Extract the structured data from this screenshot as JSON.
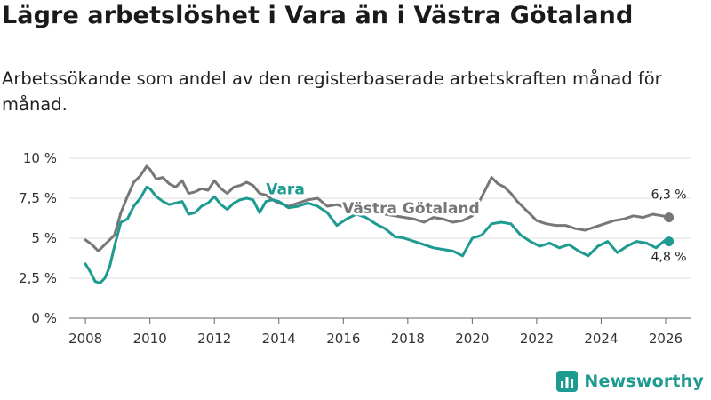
{
  "header": {
    "title": "Lägre arbetslöshet i Vara än i Västra Götaland",
    "subtitle": "Arbetssökande som andel av den registerbaserade arbetskraften månad för månad."
  },
  "brand": {
    "name": "Newsworthy",
    "color": "#1e9b90"
  },
  "chart_data": {
    "type": "line",
    "title": "Lägre arbetslöshet i Vara än i Västra Götaland",
    "subtitle": "Arbetssökande som andel av den registerbaserade arbetskraften månad för månad.",
    "xlabel": "",
    "ylabel": "",
    "xlim": [
      2007.5,
      2026.8
    ],
    "ylim": [
      0,
      10
    ],
    "x_ticks": [
      2008,
      2010,
      2012,
      2014,
      2016,
      2018,
      2020,
      2022,
      2024,
      2026
    ],
    "x_tick_labels": [
      "2008",
      "2010",
      "2012",
      "2014",
      "2016",
      "2018",
      "2020",
      "2022",
      "2024",
      "2026"
    ],
    "y_ticks": [
      0,
      2.5,
      5,
      7.5,
      10
    ],
    "y_tick_labels": [
      "0 %",
      "2,5 %",
      "5 %",
      "7,5 %",
      "10 %"
    ],
    "grid": true,
    "series": [
      {
        "name": "Västra Götaland",
        "color": "#777777",
        "x": [
          2008.0,
          2008.2,
          2008.4,
          2008.6,
          2008.9,
          2009.1,
          2009.3,
          2009.5,
          2009.7,
          2009.9,
          2010.0,
          2010.2,
          2010.4,
          2010.6,
          2010.8,
          2011.0,
          2011.2,
          2011.4,
          2011.6,
          2011.8,
          2012.0,
          2012.2,
          2012.4,
          2012.6,
          2012.8,
          2013.0,
          2013.2,
          2013.4,
          2013.6,
          2013.8,
          2014.0,
          2014.3,
          2014.6,
          2014.9,
          2015.2,
          2015.5,
          2015.8,
          2016.1,
          2016.4,
          2016.7,
          2017.0,
          2017.3,
          2017.6,
          2017.9,
          2018.2,
          2018.5,
          2018.8,
          2019.1,
          2019.4,
          2019.7,
          2020.0,
          2020.2,
          2020.4,
          2020.6,
          2020.8,
          2021.0,
          2021.2,
          2021.4,
          2021.6,
          2021.8,
          2022.0,
          2022.3,
          2022.6,
          2022.9,
          2023.2,
          2023.5,
          2023.8,
          2024.1,
          2024.4,
          2024.7,
          2025.0,
          2025.3,
          2025.6,
          2025.9,
          2026.1
        ],
        "values": [
          4.9,
          4.6,
          4.2,
          4.6,
          5.2,
          6.6,
          7.6,
          8.5,
          8.9,
          9.5,
          9.3,
          8.7,
          8.8,
          8.4,
          8.2,
          8.6,
          7.8,
          7.9,
          8.1,
          8.0,
          8.6,
          8.1,
          7.8,
          8.2,
          8.3,
          8.5,
          8.3,
          7.8,
          7.7,
          7.4,
          7.2,
          7.0,
          7.2,
          7.4,
          7.5,
          7.0,
          7.1,
          6.9,
          6.6,
          6.8,
          6.9,
          6.5,
          6.4,
          6.3,
          6.2,
          6.0,
          6.3,
          6.2,
          6.0,
          6.1,
          6.4,
          7.2,
          8.0,
          8.8,
          8.4,
          8.2,
          7.8,
          7.3,
          6.9,
          6.5,
          6.1,
          5.9,
          5.8,
          5.8,
          5.6,
          5.5,
          5.7,
          5.9,
          6.1,
          6.2,
          6.4,
          6.3,
          6.5,
          6.4,
          6.3
        ],
        "label": "Västra Götaland",
        "end_label": "6,3 %"
      },
      {
        "name": "Vara",
        "color": "#1e9b90",
        "x": [
          2008.0,
          2008.15,
          2008.3,
          2008.45,
          2008.6,
          2008.75,
          2008.9,
          2009.1,
          2009.3,
          2009.5,
          2009.7,
          2009.9,
          2010.0,
          2010.2,
          2010.4,
          2010.6,
          2010.8,
          2011.0,
          2011.2,
          2011.4,
          2011.6,
          2011.8,
          2012.0,
          2012.2,
          2012.4,
          2012.6,
          2012.8,
          2013.0,
          2013.2,
          2013.4,
          2013.6,
          2013.8,
          2014.0,
          2014.3,
          2014.6,
          2014.9,
          2015.2,
          2015.5,
          2015.8,
          2016.1,
          2016.4,
          2016.7,
          2017.0,
          2017.3,
          2017.6,
          2017.9,
          2018.2,
          2018.5,
          2018.8,
          2019.1,
          2019.4,
          2019.7,
          2020.0,
          2020.3,
          2020.6,
          2020.9,
          2021.2,
          2021.5,
          2021.8,
          2022.1,
          2022.4,
          2022.7,
          2023.0,
          2023.3,
          2023.6,
          2023.9,
          2024.2,
          2024.5,
          2024.8,
          2025.1,
          2025.4,
          2025.7,
          2026.0,
          2026.1
        ],
        "values": [
          3.4,
          2.9,
          2.3,
          2.2,
          2.5,
          3.2,
          4.5,
          6.0,
          6.2,
          7.0,
          7.5,
          8.2,
          8.1,
          7.6,
          7.3,
          7.1,
          7.2,
          7.3,
          6.5,
          6.6,
          7.0,
          7.2,
          7.6,
          7.1,
          6.8,
          7.2,
          7.4,
          7.5,
          7.4,
          6.6,
          7.3,
          7.4,
          7.3,
          6.9,
          7.0,
          7.2,
          7.0,
          6.6,
          5.8,
          6.2,
          6.5,
          6.3,
          5.9,
          5.6,
          5.1,
          5.0,
          4.8,
          4.6,
          4.4,
          4.3,
          4.2,
          3.9,
          5.0,
          5.2,
          5.9,
          6.0,
          5.9,
          5.2,
          4.8,
          4.5,
          4.7,
          4.4,
          4.6,
          4.2,
          3.9,
          4.5,
          4.8,
          4.1,
          4.5,
          4.8,
          4.7,
          4.4,
          4.9,
          4.8
        ],
        "label": "Vara",
        "end_label": "4,8 %"
      }
    ]
  }
}
